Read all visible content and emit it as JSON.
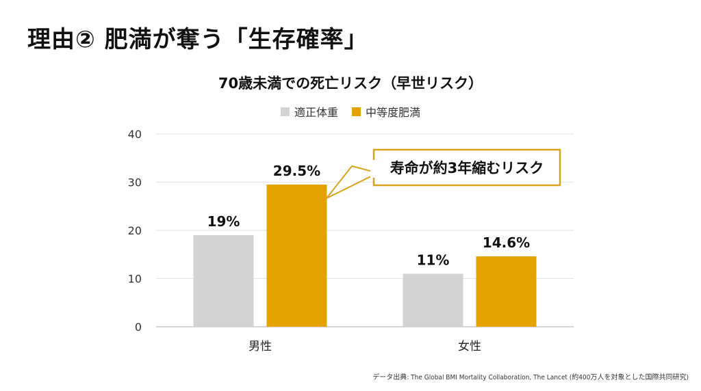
{
  "slide_title": "理由② 肥満が奪う「生存確率」",
  "source_note": "データ出典: The Global BMI Mortality Collaboration, The Lancet (約400万人を対象とした国際共同研究)",
  "callout_text": "寿命が約3年縮むリスク",
  "colors": {
    "normal": "#d3d3d3",
    "obese": "#e4a300",
    "callout_border": "#d9a21b",
    "grid": "#e5e5e5"
  },
  "chart_data": {
    "type": "bar",
    "title": "70歳未満での死亡リスク（早世リスク）",
    "categories": [
      "男性",
      "女性"
    ],
    "series": [
      {
        "name": "適正体重",
        "values": [
          19,
          11
        ],
        "labels": [
          "19%",
          "11%"
        ]
      },
      {
        "name": "中等度肥満",
        "values": [
          29.5,
          14.6
        ],
        "labels": [
          "29.5%",
          "14.6%"
        ]
      }
    ],
    "ylim": [
      0,
      40
    ],
    "yticks": [
      0,
      10,
      20,
      30,
      40
    ],
    "xlabel": "",
    "ylabel": "",
    "grid": true,
    "legend_position": "top-center"
  }
}
